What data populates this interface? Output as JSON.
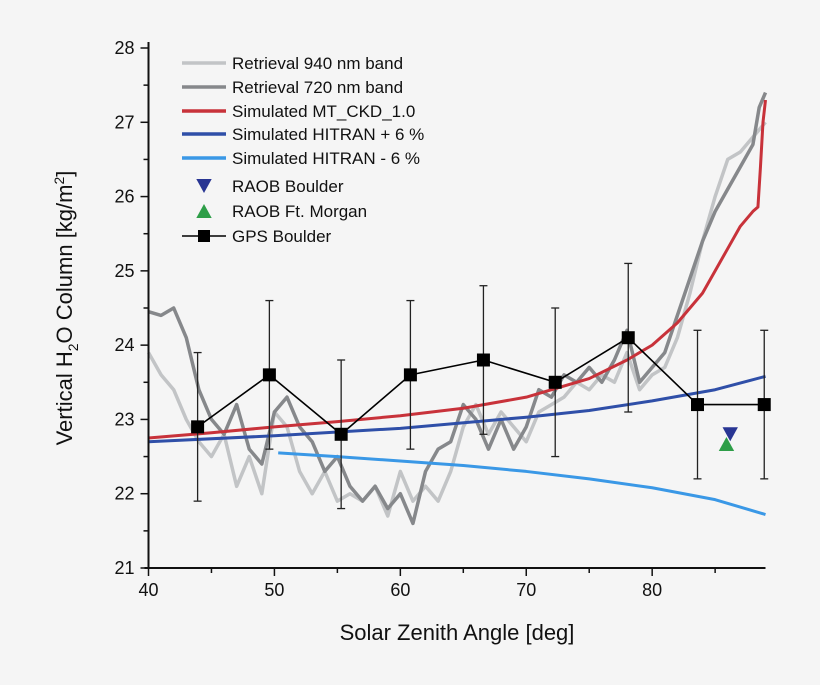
{
  "chart_data": {
    "type": "line",
    "title": "",
    "xlabel": "Solar Zenith Angle [deg]",
    "ylabel_parts": [
      "Vertical H",
      "2",
      "O Column [kg/m",
      "2",
      "]"
    ],
    "xlim": [
      40,
      89
    ],
    "ylim": [
      21,
      28
    ],
    "xticks": [
      40,
      50,
      60,
      70,
      80
    ],
    "yticks": [
      21,
      22,
      23,
      24,
      25,
      26,
      27,
      28
    ],
    "grid": false,
    "legend_position": "top-left",
    "series": [
      {
        "name": "Retrieval 940 nm band",
        "kind": "line",
        "color": "#c2c4c6",
        "x": [
          40,
          41,
          42,
          43,
          44,
          45,
          46,
          47,
          48,
          49,
          50,
          51,
          52,
          53,
          54,
          55,
          56,
          57,
          58,
          59,
          60,
          61,
          62,
          63,
          64,
          65,
          66,
          67,
          68,
          69,
          70,
          71,
          72,
          73,
          74,
          75,
          76,
          77,
          78,
          79,
          80,
          81,
          82,
          83,
          84,
          85,
          86,
          87,
          88,
          89
        ],
        "y": [
          23.9,
          23.6,
          23.4,
          23.0,
          22.7,
          22.5,
          22.8,
          22.1,
          22.5,
          22.0,
          23.1,
          22.9,
          22.3,
          22.0,
          22.3,
          21.9,
          22.0,
          21.9,
          22.1,
          21.7,
          22.3,
          21.9,
          22.1,
          21.9,
          22.3,
          22.9,
          23.2,
          22.8,
          23.1,
          22.9,
          22.7,
          23.1,
          23.2,
          23.3,
          23.5,
          23.4,
          23.6,
          23.5,
          23.9,
          23.4,
          23.6,
          23.7,
          24.1,
          24.7,
          25.4,
          26.0,
          26.5,
          26.6,
          26.8,
          27.0
        ]
      },
      {
        "name": "Retrieval 720 nm band",
        "kind": "line",
        "color": "#86888b",
        "x": [
          40,
          41,
          42,
          43,
          44,
          45,
          46,
          47,
          48,
          49,
          50,
          51,
          52,
          53,
          54,
          55,
          56,
          57,
          58,
          59,
          60,
          61,
          62,
          63,
          64,
          65,
          66,
          67,
          68,
          69,
          70,
          71,
          72,
          73,
          74,
          75,
          76,
          77,
          78,
          79,
          80,
          81,
          82,
          83,
          84,
          85,
          86,
          87,
          88,
          88.5,
          89
        ],
        "y": [
          24.45,
          24.4,
          24.5,
          24.1,
          23.4,
          23.0,
          22.8,
          23.2,
          22.6,
          22.4,
          23.1,
          23.3,
          22.9,
          22.7,
          22.3,
          22.5,
          22.1,
          21.9,
          22.1,
          21.8,
          22.0,
          21.6,
          22.3,
          22.6,
          22.7,
          23.2,
          23.0,
          22.6,
          23.0,
          22.6,
          22.9,
          23.4,
          23.3,
          23.6,
          23.5,
          23.7,
          23.5,
          23.8,
          24.2,
          23.5,
          23.7,
          23.9,
          24.4,
          24.9,
          25.4,
          25.8,
          26.1,
          26.4,
          26.7,
          27.2,
          27.4
        ]
      },
      {
        "name": "Simulated MT_CKD_1.0",
        "kind": "line",
        "color": "#c8323a",
        "x": [
          40,
          45,
          50,
          55,
          60,
          65,
          70,
          75,
          78,
          80,
          82,
          83,
          84,
          85,
          86,
          87,
          88,
          88.4,
          88.6,
          88.8,
          89
        ],
        "y": [
          22.75,
          22.82,
          22.9,
          22.97,
          23.05,
          23.15,
          23.3,
          23.55,
          23.8,
          24.0,
          24.3,
          24.5,
          24.7,
          25.0,
          25.3,
          25.6,
          25.8,
          25.86,
          26.4,
          27.0,
          27.3
        ]
      },
      {
        "name": "Simulated HITRAN + 6 %",
        "kind": "line",
        "color": "#2f4fa8",
        "x": [
          40,
          50,
          60,
          70,
          75,
          80,
          85,
          89
        ],
        "y": [
          22.7,
          22.78,
          22.88,
          23.03,
          23.12,
          23.25,
          23.4,
          23.58
        ]
      },
      {
        "name": "Simulated HITRAN - 6 %",
        "kind": "line",
        "color": "#3a98e6",
        "x": [
          50.3,
          55,
          60,
          65,
          70,
          75,
          80,
          85,
          89
        ],
        "y": [
          22.55,
          22.5,
          22.44,
          22.38,
          22.3,
          22.2,
          22.08,
          21.92,
          21.72
        ]
      },
      {
        "name": "RAOB Boulder",
        "kind": "marker",
        "marker": "triangle-down",
        "color": "#283593",
        "x": [
          86.2
        ],
        "y": [
          22.8
        ]
      },
      {
        "name": "RAOB Ft. Morgan",
        "kind": "marker",
        "marker": "triangle-up",
        "color": "#2e9e48",
        "x": [
          85.9
        ],
        "y": [
          22.67
        ]
      },
      {
        "name": "GPS Boulder",
        "kind": "line-marker",
        "marker": "square",
        "color": "#000000",
        "x": [
          43.9,
          49.6,
          55.3,
          60.8,
          66.6,
          72.3,
          78.1,
          83.6,
          88.9
        ],
        "y": [
          22.9,
          23.6,
          22.8,
          23.6,
          23.8,
          23.5,
          24.1,
          23.2,
          23.2
        ],
        "error": [
          1,
          1,
          1,
          1,
          1,
          1,
          1,
          1,
          1
        ]
      }
    ]
  }
}
